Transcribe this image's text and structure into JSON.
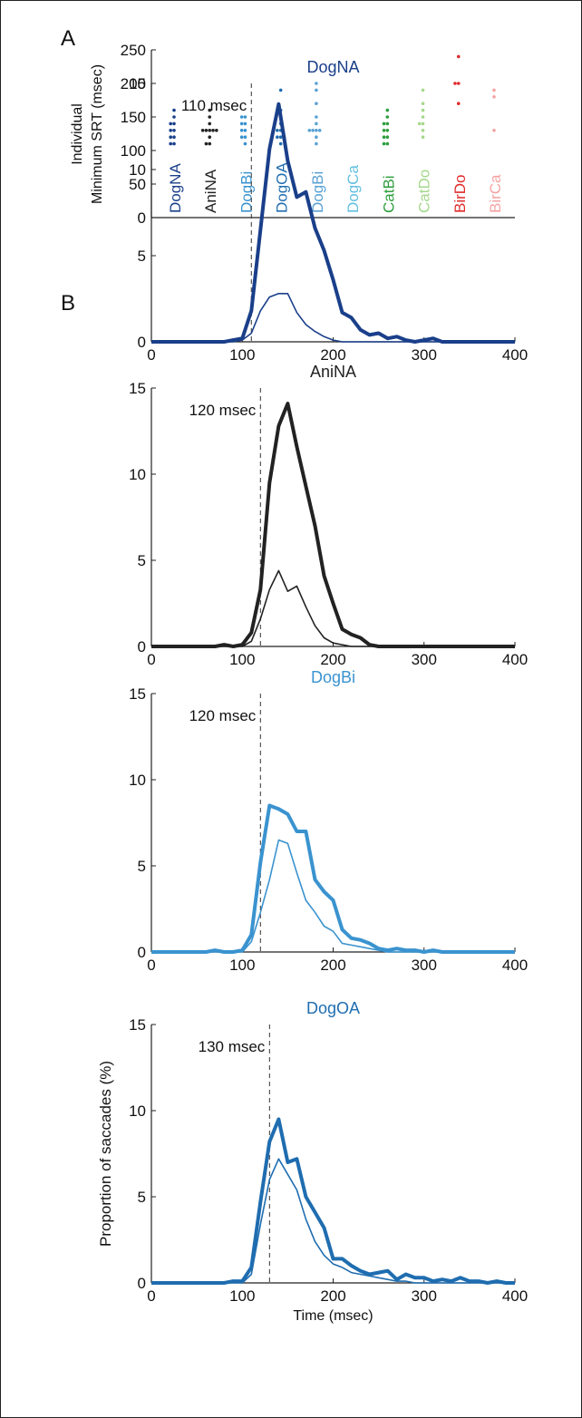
{
  "panels": {
    "a_label": "A",
    "b_label": "B"
  },
  "chart_data": [
    {
      "type": "scatter",
      "panel": "A",
      "ylabel_line1": "Individual",
      "ylabel_line2": "Minimum SRT (msec)",
      "ylim": [
        0,
        250
      ],
      "yticks": [
        0,
        50,
        100,
        150,
        200,
        250
      ],
      "categories": [
        {
          "name": "DogNA",
          "color": "#1a3f8a",
          "points": [
            110,
            110,
            120,
            120,
            130,
            130,
            140,
            140,
            150,
            160
          ]
        },
        {
          "name": "AniNA",
          "color": "#222222",
          "points": [
            110,
            110,
            120,
            130,
            130,
            130,
            130,
            130,
            140,
            150,
            160
          ]
        },
        {
          "name": "DogBi",
          "color": "#3a93cf",
          "points": [
            110,
            120,
            120,
            130,
            130,
            140,
            140,
            150,
            150
          ]
        },
        {
          "name": "DogOA",
          "color": "#1f6db0",
          "points": [
            110,
            120,
            120,
            120,
            130,
            130,
            140,
            150,
            160,
            190
          ]
        },
        {
          "name": "DogBi",
          "color": "#5aa2d5",
          "points": [
            110,
            120,
            130,
            130,
            130,
            130,
            140,
            150,
            170,
            190,
            200
          ]
        },
        {
          "name": "DogCa",
          "color": "#62bfe0",
          "points": []
        },
        {
          "name": "CatBi",
          "color": "#2e9e3e",
          "points": [
            110,
            110,
            120,
            120,
            130,
            130,
            140,
            140,
            150,
            160
          ]
        },
        {
          "name": "CatDo",
          "color": "#a6d88c",
          "points": [
            120,
            130,
            140,
            140,
            150,
            160,
            170,
            190
          ]
        },
        {
          "name": "BirDo",
          "color": "#e02a2a",
          "points": [
            170,
            200,
            200,
            240
          ]
        },
        {
          "name": "BirCa",
          "color": "#f4a3a3",
          "points": [
            130,
            180,
            190
          ]
        }
      ]
    },
    {
      "type": "line",
      "title": "DogNA",
      "color": "#1a3f8a",
      "threshold": 110,
      "threshold_label": "110 msec",
      "xlim": [
        0,
        400
      ],
      "ylim": [
        0,
        15
      ],
      "xticks": [
        0,
        100,
        200,
        300,
        400
      ],
      "yticks": [
        0,
        5,
        10,
        15
      ],
      "xlabel": "",
      "ylabel": "",
      "x": [
        0,
        10,
        20,
        30,
        40,
        50,
        60,
        70,
        80,
        90,
        100,
        110,
        120,
        130,
        140,
        150,
        160,
        170,
        180,
        190,
        200,
        210,
        220,
        230,
        240,
        250,
        260,
        270,
        280,
        290,
        300,
        310,
        320,
        330,
        340,
        350,
        360,
        370,
        380,
        390,
        400
      ],
      "series": [
        {
          "values": [
            0,
            0,
            0,
            0,
            0,
            0,
            0,
            0,
            0,
            0.1,
            0.2,
            1.8,
            6.5,
            11.2,
            13.8,
            10.5,
            8.4,
            8.7,
            6.6,
            5.3,
            3.6,
            1.7,
            1.4,
            0.7,
            0.4,
            0.5,
            0.2,
            0.3,
            0.1,
            0,
            0.1,
            0.2,
            0,
            0,
            0,
            0,
            0,
            0,
            0,
            0,
            0
          ]
        },
        {
          "values": [
            0,
            0,
            0,
            0,
            0,
            0,
            0,
            0,
            0,
            0,
            0.1,
            0.5,
            1.8,
            2.6,
            2.8,
            2.8,
            1.7,
            1.0,
            0.6,
            0.3,
            0.1,
            0,
            0,
            0,
            0,
            0,
            0,
            0,
            0,
            0,
            0,
            0,
            0,
            0,
            0,
            0,
            0,
            0,
            0,
            0,
            0
          ]
        }
      ]
    },
    {
      "type": "line",
      "title": "AniNA",
      "color": "#222222",
      "threshold": 120,
      "threshold_label": "120 msec",
      "xlim": [
        0,
        400
      ],
      "ylim": [
        0,
        15
      ],
      "xticks": [
        0,
        100,
        200,
        300,
        400
      ],
      "yticks": [
        0,
        5,
        10,
        15
      ],
      "xlabel": "",
      "ylabel": "",
      "x": [
        0,
        10,
        20,
        30,
        40,
        50,
        60,
        70,
        80,
        90,
        100,
        110,
        120,
        130,
        140,
        150,
        160,
        170,
        180,
        190,
        200,
        210,
        220,
        230,
        240,
        250,
        260,
        270,
        280,
        290,
        300,
        310,
        320,
        330,
        340,
        350,
        360,
        370,
        380,
        390,
        400
      ],
      "series": [
        {
          "values": [
            0,
            0,
            0,
            0,
            0,
            0,
            0,
            0,
            0.1,
            0,
            0.1,
            0.8,
            3.3,
            9.5,
            12.8,
            14.1,
            11.6,
            9.3,
            7.0,
            4.1,
            2.5,
            1.0,
            0.7,
            0.5,
            0.1,
            0,
            0,
            0,
            0,
            0,
            0,
            0,
            0,
            0,
            0,
            0,
            0,
            0,
            0,
            0,
            0
          ]
        },
        {
          "values": [
            0,
            0,
            0,
            0,
            0,
            0,
            0,
            0,
            0,
            0,
            0,
            0.3,
            1.6,
            3.3,
            4.4,
            3.2,
            3.5,
            2.3,
            1.2,
            0.5,
            0.2,
            0.1,
            0,
            0,
            0,
            0,
            0,
            0,
            0,
            0,
            0,
            0,
            0,
            0,
            0,
            0,
            0,
            0,
            0,
            0,
            0
          ]
        }
      ]
    },
    {
      "type": "line",
      "title": "DogBi",
      "color": "#3a93cf",
      "threshold": 120,
      "threshold_label": "120 msec",
      "xlim": [
        0,
        400
      ],
      "ylim": [
        0,
        15
      ],
      "xticks": [
        0,
        100,
        200,
        300,
        400
      ],
      "yticks": [
        0,
        5,
        10,
        15
      ],
      "xlabel": "",
      "ylabel": "",
      "x": [
        0,
        10,
        20,
        30,
        40,
        50,
        60,
        70,
        80,
        90,
        100,
        110,
        120,
        130,
        140,
        150,
        160,
        170,
        180,
        190,
        200,
        210,
        220,
        230,
        240,
        250,
        260,
        270,
        280,
        290,
        300,
        310,
        320,
        330,
        340,
        350,
        360,
        370,
        380,
        390,
        400
      ],
      "series": [
        {
          "values": [
            0,
            0,
            0,
            0,
            0,
            0,
            0,
            0.1,
            0,
            0,
            0.1,
            1.0,
            5.2,
            8.5,
            8.3,
            8.0,
            7.0,
            7.0,
            4.2,
            3.5,
            3.0,
            1.3,
            0.8,
            0.7,
            0.5,
            0.2,
            0.1,
            0.2,
            0.1,
            0.1,
            0,
            0.1,
            0,
            0,
            0,
            0,
            0,
            0,
            0,
            0,
            0
          ]
        },
        {
          "values": [
            0,
            0,
            0,
            0,
            0,
            0,
            0,
            0,
            0,
            0,
            0,
            0.6,
            2.3,
            4.2,
            6.5,
            6.3,
            4.6,
            3.0,
            2.3,
            1.5,
            1.2,
            0.5,
            0.4,
            0.3,
            0.2,
            0.1,
            0,
            0,
            0,
            0,
            0,
            0,
            0,
            0,
            0,
            0,
            0,
            0,
            0,
            0,
            0
          ]
        }
      ]
    },
    {
      "type": "line",
      "title": "DogOA",
      "color": "#1f6db0",
      "threshold": 130,
      "threshold_label": "130 msec",
      "xlim": [
        0,
        400
      ],
      "ylim": [
        0,
        15
      ],
      "xticks": [
        0,
        100,
        200,
        300,
        400
      ],
      "yticks": [
        0,
        5,
        10,
        15
      ],
      "xlabel": "Time (msec)",
      "ylabel": "Proportion of saccades (%)",
      "x": [
        0,
        10,
        20,
        30,
        40,
        50,
        60,
        70,
        80,
        90,
        100,
        110,
        120,
        130,
        140,
        150,
        160,
        170,
        180,
        190,
        200,
        210,
        220,
        230,
        240,
        250,
        260,
        270,
        280,
        290,
        300,
        310,
        320,
        330,
        340,
        350,
        360,
        370,
        380,
        390,
        400
      ],
      "series": [
        {
          "values": [
            0,
            0,
            0,
            0,
            0,
            0,
            0,
            0,
            0,
            0.1,
            0.1,
            0.9,
            4.7,
            8.2,
            9.5,
            7.0,
            7.2,
            5.0,
            4.1,
            3.2,
            1.4,
            1.4,
            1.0,
            0.7,
            0.5,
            0.6,
            0.7,
            0.2,
            0.5,
            0.3,
            0.3,
            0.1,
            0.2,
            0.1,
            0.3,
            0.1,
            0.1,
            0,
            0.1,
            0,
            0
          ]
        },
        {
          "values": [
            0,
            0,
            0,
            0,
            0,
            0,
            0,
            0,
            0,
            0,
            0,
            0.5,
            3.4,
            6.0,
            7.2,
            6.3,
            5.4,
            3.7,
            2.4,
            1.6,
            1.1,
            0.9,
            0.6,
            0.5,
            0.4,
            0.3,
            0.2,
            0.1,
            0.1,
            0,
            0,
            0,
            0,
            0,
            0,
            0,
            0,
            0,
            0,
            0,
            0
          ]
        }
      ]
    }
  ]
}
